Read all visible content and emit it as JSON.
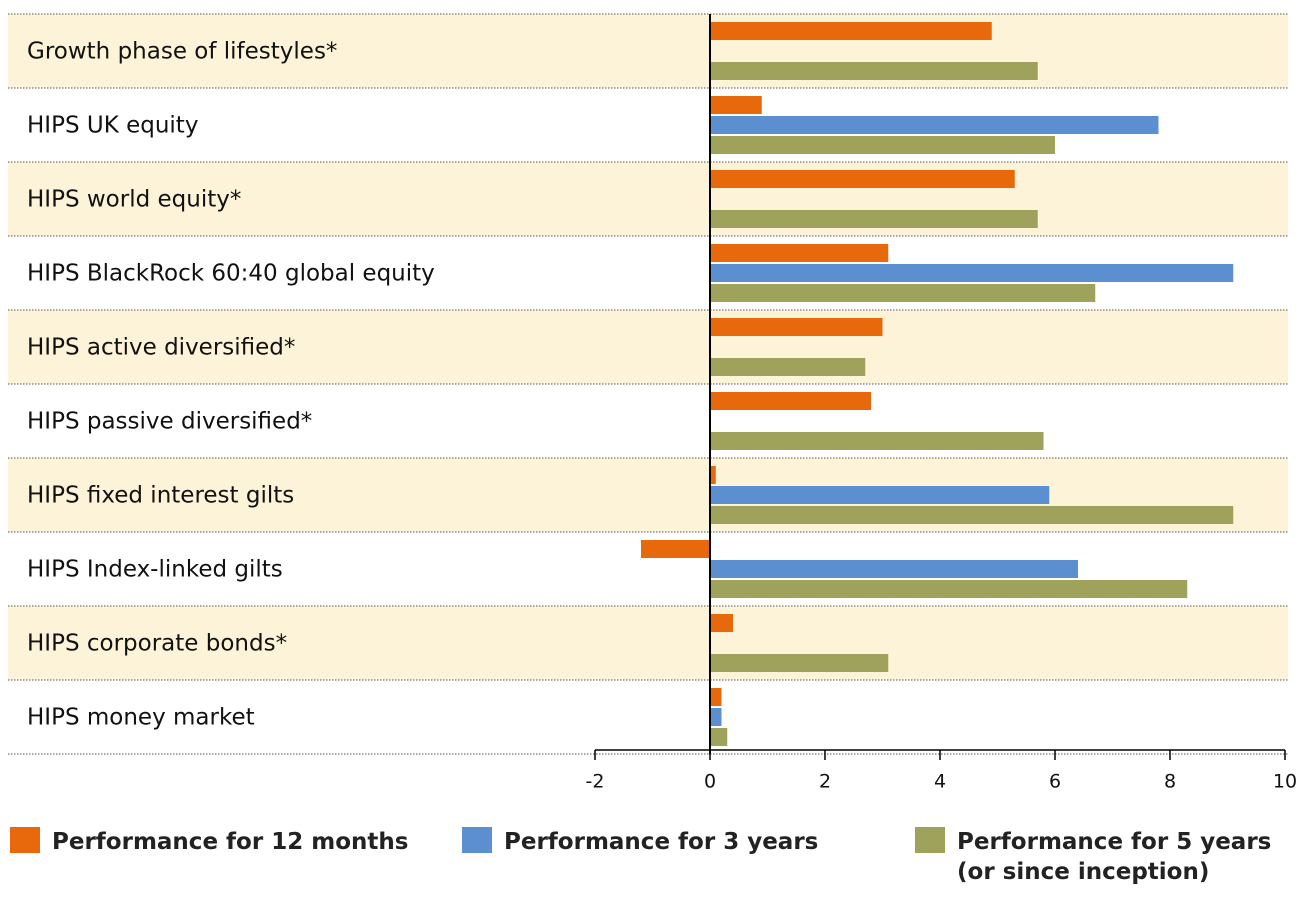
{
  "chart_data": {
    "type": "bar",
    "orientation": "horizontal",
    "categories": [
      "Growth phase of lifestyles*",
      "HIPS UK equity",
      "HIPS world equity*",
      "HIPS BlackRock 60:40 global equity",
      "HIPS active diversified*",
      "HIPS passive diversified*",
      "HIPS fixed interest gilts",
      "HIPS Index-linked gilts",
      "HIPS corporate bonds*",
      "HIPS money market"
    ],
    "series": [
      {
        "name": "Performance for 12 months",
        "color": "#e8690c",
        "values": [
          4.9,
          0.9,
          5.3,
          3.1,
          3.0,
          2.8,
          0.1,
          -1.2,
          0.4,
          0.2
        ]
      },
      {
        "name": "Performance for 3 years",
        "color": "#5b8fd0",
        "values": [
          null,
          7.8,
          null,
          9.1,
          null,
          null,
          5.9,
          6.4,
          null,
          0.2
        ]
      },
      {
        "name": "Performance for 5 years (or since inception)",
        "color": "#9ea25a",
        "values": [
          5.7,
          6.0,
          5.7,
          6.7,
          2.7,
          5.8,
          9.1,
          8.3,
          3.1,
          0.3
        ]
      }
    ],
    "xlim": [
      -2,
      10
    ],
    "xticks": [
      -2,
      0,
      2,
      4,
      6,
      8,
      10
    ],
    "legend": "bottom"
  }
}
